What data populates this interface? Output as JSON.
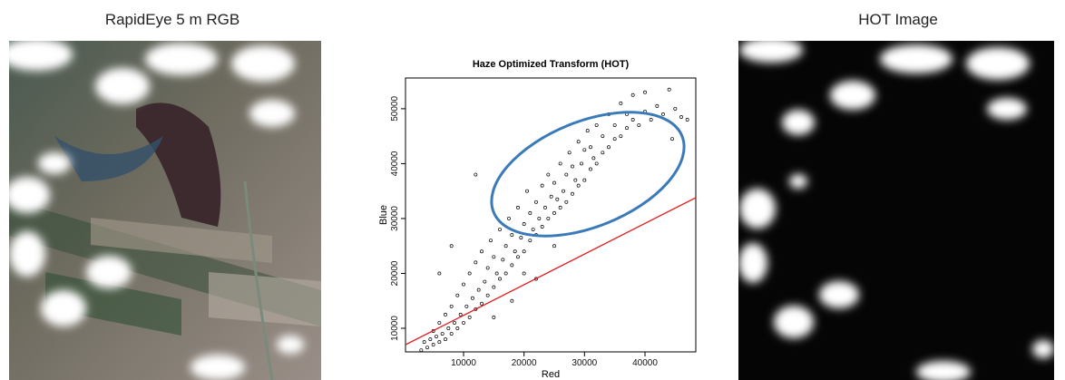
{
  "images": [
    {
      "title": "RapidEye 5 m RGB"
    },
    {
      "title": "HOT Image"
    }
  ],
  "chart_data": {
    "type": "scatter",
    "title": "Haze Optimized Transform (HOT)",
    "xlabel": "Red",
    "ylabel": "Blue",
    "x": [
      3000,
      3500,
      4000,
      4500,
      5000,
      5000,
      5500,
      6000,
      6000,
      6500,
      7000,
      7000,
      7500,
      8000,
      8000,
      8500,
      9000,
      9000,
      9500,
      10000,
      10000,
      10500,
      11000,
      11000,
      11500,
      12000,
      12000,
      12500,
      13000,
      13000,
      13500,
      14000,
      14000,
      14500,
      15000,
      15000,
      15500,
      16000,
      16000,
      16500,
      17000,
      17000,
      17500,
      18000,
      18000,
      18500,
      19000,
      19000,
      19500,
      20000,
      20000,
      20500,
      21000,
      21000,
      21500,
      22000,
      22000,
      22500,
      23000,
      23000,
      23500,
      24000,
      24000,
      24500,
      25000,
      25000,
      25500,
      26000,
      26000,
      26500,
      27000,
      27000,
      27500,
      28000,
      28000,
      28500,
      29000,
      29000,
      29500,
      30000,
      30000,
      30500,
      31000,
      31000,
      31500,
      32000,
      32000,
      33000,
      33000,
      34000,
      34000,
      35000,
      35000,
      36000,
      36000,
      37000,
      37000,
      38000,
      38000,
      39000,
      40000,
      40000,
      41000,
      42000,
      43000,
      44000,
      44500,
      45000,
      46000,
      47000,
      12000,
      8000,
      6000,
      20000,
      25000,
      15000,
      18000,
      22000
    ],
    "y": [
      6000,
      7500,
      6500,
      8000,
      7000,
      9500,
      8500,
      7500,
      11000,
      9000,
      8000,
      12500,
      10000,
      9000,
      14000,
      11000,
      10000,
      16000,
      12500,
      11000,
      18000,
      14000,
      12000,
      20000,
      15500,
      13500,
      22000,
      17000,
      14500,
      24000,
      18500,
      16000,
      21000,
      26000,
      17500,
      23000,
      20000,
      19000,
      28000,
      22500,
      20000,
      25000,
      30000,
      21500,
      27000,
      24000,
      23000,
      32000,
      26500,
      24000,
      29000,
      35000,
      26000,
      31000,
      28000,
      27000,
      33000,
      30000,
      28500,
      36000,
      32000,
      30000,
      38000,
      34000,
      31000,
      36500,
      33500,
      32000,
      40000,
      35000,
      33000,
      38000,
      42000,
      34500,
      39500,
      37000,
      36000,
      44000,
      40000,
      37000,
      42500,
      46000,
      39000,
      43000,
      41000,
      40000,
      47000,
      42000,
      45000,
      43000,
      49000,
      44500,
      47000,
      45000,
      51000,
      46500,
      49000,
      48000,
      52500,
      47000,
      49500,
      53000,
      48000,
      50500,
      49000,
      53500,
      44500,
      50000,
      48500,
      48000,
      38000,
      25000,
      20000,
      20000,
      25000,
      12000,
      15000,
      19000
    ],
    "color": "#000000",
    "fit_line": {
      "x": [
        400,
        48400
      ],
      "y": [
        7000,
        33800
      ],
      "color": "#e02020"
    },
    "xlim": [
      400,
      48400
    ],
    "ylim": [
      5700,
      55600
    ],
    "xticks": [
      10000,
      20000,
      30000,
      40000
    ],
    "yticks": [
      10000,
      20000,
      30000,
      40000,
      50000
    ]
  }
}
